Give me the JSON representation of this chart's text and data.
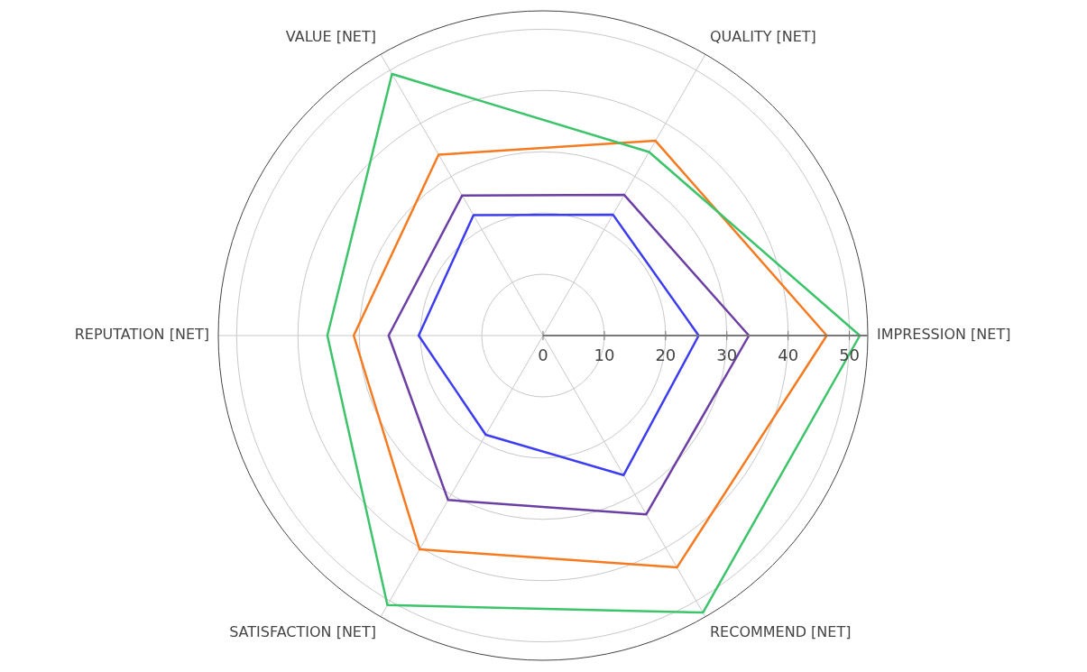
{
  "chart_data": {
    "type": "radar",
    "categories": [
      "QUALITY [NET]",
      "IMPRESSION [NET]",
      "RECOMMEND [NET]",
      "SATISFACTION [NET]",
      "REPUTATION [NET]",
      "VALUE [NET]"
    ],
    "series": [
      {
        "color": "#3dc46b",
        "values": [
          34.6,
          51.7,
          52.2,
          50.8,
          35.2,
          49.3
        ]
      },
      {
        "color": "#f57a20",
        "values": [
          36.7,
          46.3,
          43.7,
          40.3,
          30.9,
          34.1
        ]
      },
      {
        "color": "#6b3fa3",
        "values": [
          26.5,
          33.6,
          33.7,
          31,
          25.2,
          26.4
        ]
      },
      {
        "color": "#3c3cf2",
        "values": [
          22.8,
          25.4,
          26.3,
          18.7,
          20.3,
          22.7
        ]
      }
    ],
    "ylim": [
      0,
      53
    ],
    "yticks": [
      0,
      10,
      20,
      30,
      40,
      50
    ],
    "grid": true,
    "legend": false,
    "marker": "none",
    "line_style": "solid"
  }
}
